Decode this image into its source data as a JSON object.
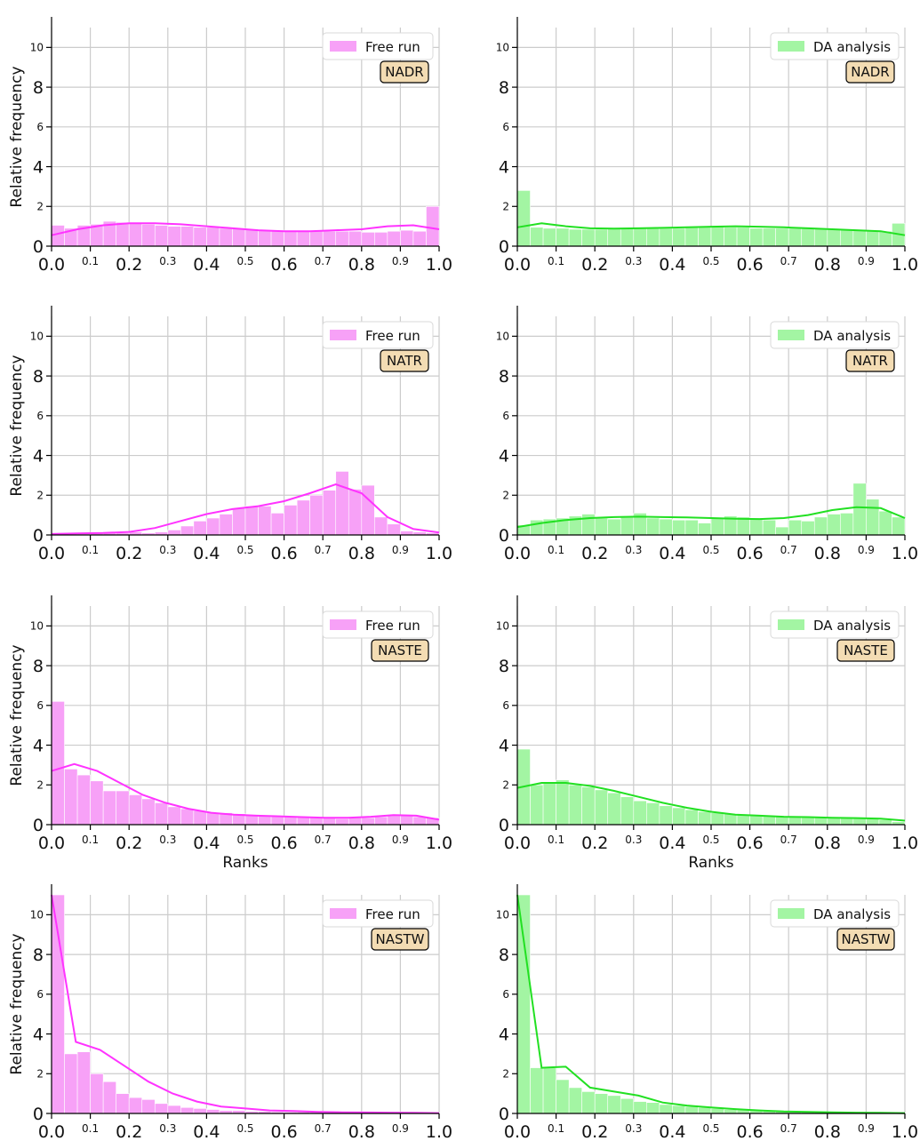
{
  "figure": {
    "panels_layout": "4 rows x 2 columns",
    "colors": {
      "free_run": "#ff33ff",
      "free_run_fill": "#f7a1f7",
      "da_analysis": "#22e022",
      "da_analysis_fill": "#a3f5a3",
      "grid": "#cccccc",
      "badge_fill": "#f3dcb3"
    }
  },
  "chart_data": [
    {
      "type": "bar",
      "panel": "NADR-free",
      "legend": "Free run",
      "badge": "NADR",
      "color": "free",
      "ylabel": "Relative frequency",
      "xlabel": "",
      "xlim": [
        0,
        1
      ],
      "ylim": [
        0,
        11
      ],
      "bin_width": 0.0333,
      "values": [
        1.05,
        0.9,
        1.05,
        1.1,
        1.25,
        1.2,
        1.15,
        1.1,
        1.05,
        1.0,
        1.0,
        0.95,
        0.95,
        0.9,
        0.9,
        0.85,
        0.8,
        0.8,
        0.75,
        0.75,
        0.75,
        0.75,
        0.75,
        0.75,
        0.7,
        0.7,
        0.75,
        0.8,
        0.75,
        2.0
      ],
      "kde": [
        0.55,
        0.85,
        1.05,
        1.15,
        1.15,
        1.1,
        1.0,
        0.9,
        0.8,
        0.75,
        0.75,
        0.8,
        0.85,
        1.0,
        1.05,
        0.85
      ]
    },
    {
      "type": "bar",
      "panel": "NADR-da",
      "legend": "DA analysis",
      "badge": "NADR",
      "color": "da",
      "ylabel": "",
      "xlabel": "",
      "xlim": [
        0,
        1
      ],
      "ylim": [
        0,
        11
      ],
      "bin_width": 0.0333,
      "values": [
        2.8,
        0.95,
        0.9,
        0.9,
        0.85,
        0.85,
        0.85,
        0.9,
        0.9,
        0.9,
        0.9,
        0.9,
        0.9,
        0.95,
        0.95,
        1.0,
        0.95,
        0.95,
        0.9,
        0.9,
        0.9,
        0.9,
        0.9,
        0.9,
        0.85,
        0.85,
        0.8,
        0.8,
        0.75,
        1.15
      ],
      "kde": [
        0.95,
        1.15,
        1.0,
        0.9,
        0.88,
        0.9,
        0.92,
        0.95,
        0.98,
        1.0,
        0.98,
        0.95,
        0.9,
        0.85,
        0.8,
        0.75,
        0.55
      ]
    },
    {
      "type": "bar",
      "panel": "NATR-free",
      "legend": "Free run",
      "badge": "NATR",
      "color": "free",
      "ylabel": "Relative frequency",
      "xlabel": "",
      "xlim": [
        0,
        1
      ],
      "ylim": [
        0,
        11
      ],
      "bin_width": 0.0333,
      "values": [
        0.0,
        0.05,
        0.05,
        0.1,
        0.1,
        0.1,
        0.15,
        0.1,
        0.15,
        0.25,
        0.45,
        0.7,
        0.85,
        1.05,
        1.35,
        1.45,
        1.45,
        1.1,
        1.5,
        1.75,
        2.0,
        2.25,
        3.2,
        2.3,
        2.5,
        0.9,
        0.55,
        0.2,
        0.15,
        0.1
      ],
      "kde": [
        0.05,
        0.08,
        0.1,
        0.15,
        0.35,
        0.7,
        1.05,
        1.3,
        1.45,
        1.7,
        2.1,
        2.55,
        2.1,
        0.9,
        0.3,
        0.12
      ]
    },
    {
      "type": "bar",
      "panel": "NATR-da",
      "legend": "DA analysis",
      "badge": "NATR",
      "color": "da",
      "ylabel": "",
      "xlabel": "",
      "xlim": [
        0,
        1
      ],
      "ylim": [
        0,
        11
      ],
      "bin_width": 0.0333,
      "values": [
        0.5,
        0.75,
        0.8,
        0.85,
        0.95,
        1.05,
        0.85,
        0.8,
        0.9,
        1.1,
        0.85,
        0.8,
        0.75,
        0.75,
        0.6,
        0.85,
        0.95,
        0.9,
        0.8,
        0.75,
        0.4,
        0.75,
        0.7,
        0.9,
        1.05,
        1.1,
        2.6,
        1.8,
        1.2,
        0.9
      ],
      "kde": [
        0.4,
        0.6,
        0.75,
        0.85,
        0.9,
        0.92,
        0.9,
        0.88,
        0.85,
        0.82,
        0.8,
        0.85,
        1.0,
        1.25,
        1.4,
        1.35,
        0.85
      ]
    },
    {
      "type": "bar",
      "panel": "NASTE-free",
      "legend": "Free run",
      "badge": "NASTE",
      "color": "free",
      "ylabel": "Relative frequency",
      "xlabel": "Ranks",
      "xlim": [
        0,
        1
      ],
      "ylim": [
        0,
        11
      ],
      "bin_width": 0.0333,
      "values": [
        6.2,
        2.8,
        2.5,
        2.2,
        1.7,
        1.7,
        1.5,
        1.3,
        1.1,
        0.9,
        0.8,
        0.7,
        0.6,
        0.6,
        0.55,
        0.5,
        0.45,
        0.45,
        0.4,
        0.4,
        0.35,
        0.35,
        0.3,
        0.35,
        0.35,
        0.4,
        0.45,
        0.5,
        0.4,
        0.35
      ],
      "kde": [
        2.7,
        3.05,
        2.7,
        2.1,
        1.5,
        1.1,
        0.8,
        0.6,
        0.5,
        0.45,
        0.42,
        0.38,
        0.35,
        0.35,
        0.4,
        0.48,
        0.45,
        0.25
      ]
    },
    {
      "type": "bar",
      "panel": "NASTE-da",
      "legend": "DA analysis",
      "badge": "NASTE",
      "color": "da",
      "ylabel": "",
      "xlabel": "Ranks",
      "xlim": [
        0,
        1
      ],
      "ylim": [
        0,
        11
      ],
      "bin_width": 0.0333,
      "values": [
        3.8,
        2.0,
        2.1,
        2.25,
        2.0,
        1.9,
        1.75,
        1.6,
        1.4,
        1.2,
        1.1,
        0.95,
        0.85,
        0.75,
        0.65,
        0.6,
        0.55,
        0.5,
        0.45,
        0.45,
        0.4,
        0.4,
        0.4,
        0.35,
        0.35,
        0.35,
        0.35,
        0.3,
        0.25,
        0.15
      ],
      "kde": [
        1.85,
        2.1,
        2.1,
        1.95,
        1.7,
        1.4,
        1.1,
        0.85,
        0.65,
        0.5,
        0.45,
        0.4,
        0.38,
        0.35,
        0.33,
        0.3,
        0.2
      ]
    },
    {
      "type": "bar",
      "panel": "NASTW-free",
      "legend": "Free run",
      "badge": "NASTW",
      "color": "free",
      "ylabel": "Relative frequency",
      "xlabel": "",
      "xlim": [
        0,
        1
      ],
      "ylim": [
        0,
        11
      ],
      "bin_width": 0.0333,
      "values": [
        11,
        3.0,
        3.1,
        2.0,
        1.6,
        1.0,
        0.8,
        0.7,
        0.5,
        0.4,
        0.3,
        0.25,
        0.2,
        0.15,
        0.15,
        0.1,
        0.1,
        0.08,
        0.07,
        0.07,
        0.06,
        0.05,
        0.05,
        0.04,
        0.04,
        0.03,
        0.03,
        0.02,
        0.02,
        0.02
      ],
      "kde": [
        11,
        3.6,
        3.2,
        2.4,
        1.6,
        1.0,
        0.6,
        0.35,
        0.25,
        0.15,
        0.12,
        0.08,
        0.06,
        0.05,
        0.04,
        0.03,
        0.02
      ]
    },
    {
      "type": "bar",
      "panel": "NASTW-da",
      "legend": "DA analysis",
      "badge": "NASTW",
      "color": "da",
      "ylabel": "",
      "xlabel": "",
      "xlim": [
        0,
        1
      ],
      "ylim": [
        0,
        11
      ],
      "bin_width": 0.0333,
      "values": [
        11,
        2.3,
        2.3,
        1.7,
        1.3,
        1.1,
        1.0,
        0.9,
        0.75,
        0.6,
        0.55,
        0.45,
        0.4,
        0.35,
        0.3,
        0.25,
        0.2,
        0.18,
        0.15,
        0.12,
        0.1,
        0.08,
        0.07,
        0.06,
        0.05,
        0.04,
        0.04,
        0.03,
        0.03,
        0.02
      ],
      "kde": [
        11,
        2.3,
        2.35,
        1.3,
        1.1,
        0.9,
        0.55,
        0.4,
        0.3,
        0.22,
        0.15,
        0.1,
        0.08,
        0.06,
        0.04,
        0.03,
        0.02
      ]
    }
  ]
}
